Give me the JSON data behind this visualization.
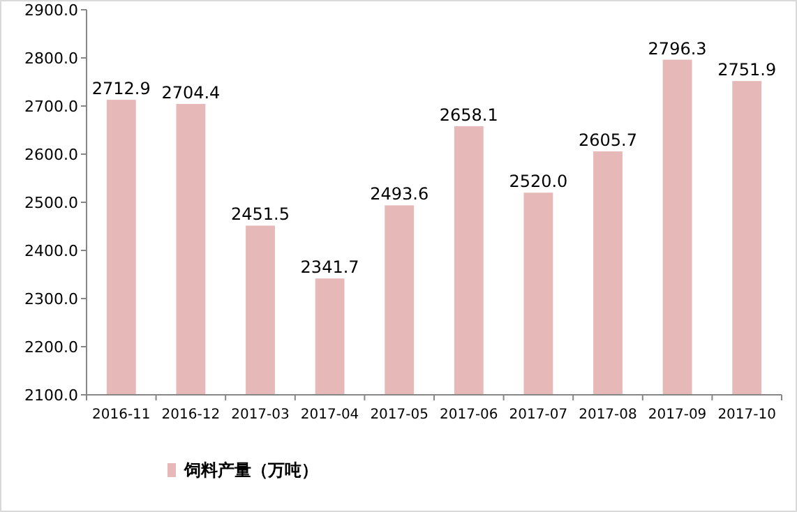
{
  "chart_data": {
    "type": "bar",
    "categories": [
      "2016-11",
      "2016-12",
      "2017-03",
      "2017-04",
      "2017-05",
      "2017-06",
      "2017-07",
      "2017-08",
      "2017-09",
      "2017-10"
    ],
    "series": [
      {
        "name": "饲料产量（万吨）",
        "color": "#e6b8b7",
        "values": [
          2712.9,
          2704.4,
          2451.5,
          2341.7,
          2493.6,
          2658.1,
          2520.0,
          2605.7,
          2796.3,
          2751.9
        ],
        "value_labels": [
          "2712.9",
          "2704.4",
          "2451.5",
          "2341.7",
          "2493.6",
          "2658.1",
          "2520.0",
          "2605.7",
          "2796.3",
          "2751.9"
        ]
      }
    ],
    "ylim": [
      2100,
      2900
    ],
    "yticks": [
      {
        "value": 2100,
        "label": "2100.0"
      },
      {
        "value": 2200,
        "label": "2200.0"
      },
      {
        "value": 2300,
        "label": "2300.0"
      },
      {
        "value": 2400,
        "label": "2400.0"
      },
      {
        "value": 2500,
        "label": "2500.0"
      },
      {
        "value": 2600,
        "label": "2600.0"
      },
      {
        "value": 2700,
        "label": "2700.0"
      },
      {
        "value": 2800,
        "label": "2800.0"
      },
      {
        "value": 2900,
        "label": "2900.0"
      }
    ],
    "legend": "bottom"
  }
}
